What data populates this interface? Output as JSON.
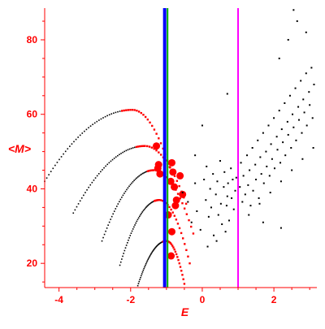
{
  "chart_data": {
    "type": "scatter",
    "xlabel": "E",
    "ylabel": "<M>",
    "xlim": [
      -4.4,
      3.2
    ],
    "ylim": [
      13.5,
      88.5
    ],
    "grid": false,
    "x_ticks": [
      -4,
      -2,
      0,
      2
    ],
    "y_ticks": [
      20,
      40,
      60,
      80
    ],
    "x_tick_labels": [
      "-4",
      "-2",
      "0",
      "2"
    ],
    "y_tick_labels": [
      "20",
      "40",
      "60",
      "80"
    ],
    "colors": {
      "axis": "#ff0000",
      "black_series": "#000000",
      "red_series": "#ff0000",
      "line_blue": "#0000ff",
      "line_green": "#00aa00",
      "line_magenta": "#ff00ff"
    },
    "vertical_lines": [
      {
        "x": -1.05,
        "color": "#0000ff",
        "width": 4
      },
      {
        "x": -0.97,
        "color": "#00aa00",
        "width": 2
      },
      {
        "x": 1.0,
        "color": "#ff00ff",
        "width": 2
      }
    ],
    "red_curves": [
      {
        "start": [
          -4.4,
          42.0
        ],
        "peak": [
          -1.95,
          61.2
        ],
        "end": [
          -0.85,
          44.0
        ]
      },
      {
        "start": [
          -3.6,
          33.5
        ],
        "peak": [
          -1.6,
          51.5
        ],
        "end": [
          -0.45,
          36.0
        ]
      },
      {
        "start": [
          -2.8,
          26.0
        ],
        "peak": [
          -1.35,
          45.0
        ],
        "end": [
          -0.25,
          28.0
        ]
      },
      {
        "start": [
          -2.3,
          19.5
        ],
        "peak": [
          -1.2,
          37.0
        ],
        "end": [
          -0.35,
          20.0
        ]
      },
      {
        "start": [
          -1.8,
          14.0
        ],
        "peak": [
          -1.0,
          26.0
        ],
        "end": [
          -0.5,
          14.5
        ]
      }
    ],
    "red_large_points": [
      {
        "x": -1.22,
        "y": 46.5
      },
      {
        "x": -1.24,
        "y": 45.5
      },
      {
        "x": -1.18,
        "y": 44.0
      },
      {
        "x": -0.85,
        "y": 47.0
      },
      {
        "x": -0.82,
        "y": 44.5
      },
      {
        "x": -0.88,
        "y": 42.0
      },
      {
        "x": -0.72,
        "y": 37.0
      },
      {
        "x": -0.75,
        "y": 35.5
      },
      {
        "x": -0.85,
        "y": 28.5
      },
      {
        "x": -0.87,
        "y": 22.0
      },
      {
        "x": -1.28,
        "y": 51.5
      },
      {
        "x": -0.78,
        "y": 40.5
      },
      {
        "x": -0.62,
        "y": 43.5
      },
      {
        "x": -0.55,
        "y": 38.5
      },
      {
        "x": -0.95,
        "y": 33.0
      }
    ],
    "black_points": [
      {
        "x": -0.55,
        "y": 39.0
      },
      {
        "x": -0.4,
        "y": 36.5
      },
      {
        "x": -0.3,
        "y": 31.0
      },
      {
        "x": -0.2,
        "y": 41.5
      },
      {
        "x": -0.15,
        "y": 34.0
      },
      {
        "x": -0.05,
        "y": 29.0
      },
      {
        "x": 0.05,
        "y": 42.5
      },
      {
        "x": 0.1,
        "y": 37.0
      },
      {
        "x": 0.12,
        "y": 46.0
      },
      {
        "x": 0.18,
        "y": 32.5
      },
      {
        "x": 0.22,
        "y": 40.0
      },
      {
        "x": 0.25,
        "y": 35.0
      },
      {
        "x": 0.3,
        "y": 44.0
      },
      {
        "x": 0.32,
        "y": 27.5
      },
      {
        "x": 0.38,
        "y": 38.5
      },
      {
        "x": 0.42,
        "y": 42.0
      },
      {
        "x": 0.45,
        "y": 33.0
      },
      {
        "x": 0.5,
        "y": 47.5
      },
      {
        "x": 0.52,
        "y": 36.0
      },
      {
        "x": 0.55,
        "y": 30.5
      },
      {
        "x": 0.6,
        "y": 40.5
      },
      {
        "x": 0.62,
        "y": 44.5
      },
      {
        "x": 0.68,
        "y": 35.5
      },
      {
        "x": 0.7,
        "y": 38.0
      },
      {
        "x": 0.72,
        "y": 41.5
      },
      {
        "x": 0.75,
        "y": 31.5
      },
      {
        "x": 0.8,
        "y": 45.5
      },
      {
        "x": 0.82,
        "y": 37.5
      },
      {
        "x": 0.85,
        "y": 42.5
      },
      {
        "x": 0.88,
        "y": 34.5
      },
      {
        "x": 0.92,
        "y": 39.5
      },
      {
        "x": 0.95,
        "y": 43.0
      },
      {
        "x": 1.05,
        "y": 40.5
      },
      {
        "x": 1.08,
        "y": 47.0
      },
      {
        "x": 1.12,
        "y": 36.5
      },
      {
        "x": 1.15,
        "y": 43.5
      },
      {
        "x": 1.2,
        "y": 38.5
      },
      {
        "x": 1.25,
        "y": 49.0
      },
      {
        "x": 1.28,
        "y": 41.0
      },
      {
        "x": 1.32,
        "y": 45.0
      },
      {
        "x": 1.35,
        "y": 35.5
      },
      {
        "x": 1.4,
        "y": 51.0
      },
      {
        "x": 1.42,
        "y": 39.5
      },
      {
        "x": 1.48,
        "y": 46.5
      },
      {
        "x": 1.5,
        "y": 42.5
      },
      {
        "x": 1.55,
        "y": 53.0
      },
      {
        "x": 1.58,
        "y": 37.5
      },
      {
        "x": 1.62,
        "y": 48.5
      },
      {
        "x": 1.65,
        "y": 44.0
      },
      {
        "x": 1.7,
        "y": 55.0
      },
      {
        "x": 1.72,
        "y": 41.5
      },
      {
        "x": 1.78,
        "y": 50.0
      },
      {
        "x": 1.8,
        "y": 46.0
      },
      {
        "x": 1.85,
        "y": 57.0
      },
      {
        "x": 1.88,
        "y": 43.5
      },
      {
        "x": 1.92,
        "y": 52.0
      },
      {
        "x": 1.95,
        "y": 48.0
      },
      {
        "x": 2.0,
        "y": 59.0
      },
      {
        "x": 2.02,
        "y": 45.5
      },
      {
        "x": 2.08,
        "y": 54.0
      },
      {
        "x": 2.1,
        "y": 50.5
      },
      {
        "x": 2.15,
        "y": 61.0
      },
      {
        "x": 2.18,
        "y": 47.0
      },
      {
        "x": 2.22,
        "y": 56.0
      },
      {
        "x": 2.25,
        "y": 52.5
      },
      {
        "x": 2.3,
        "y": 63.0
      },
      {
        "x": 2.32,
        "y": 49.0
      },
      {
        "x": 2.38,
        "y": 58.0
      },
      {
        "x": 2.4,
        "y": 54.5
      },
      {
        "x": 2.45,
        "y": 65.0
      },
      {
        "x": 2.48,
        "y": 51.0
      },
      {
        "x": 2.52,
        "y": 60.0
      },
      {
        "x": 2.55,
        "y": 56.5
      },
      {
        "x": 2.6,
        "y": 67.0
      },
      {
        "x": 2.62,
        "y": 53.0
      },
      {
        "x": 2.68,
        "y": 62.0
      },
      {
        "x": 2.7,
        "y": 58.5
      },
      {
        "x": 2.75,
        "y": 69.0
      },
      {
        "x": 2.78,
        "y": 55.0
      },
      {
        "x": 2.82,
        "y": 64.0
      },
      {
        "x": 2.85,
        "y": 60.5
      },
      {
        "x": 2.9,
        "y": 71.0
      },
      {
        "x": 2.92,
        "y": 57.0
      },
      {
        "x": 2.98,
        "y": 66.0
      },
      {
        "x": 3.0,
        "y": 62.5
      },
      {
        "x": 3.05,
        "y": 72.5
      },
      {
        "x": 3.08,
        "y": 59.0
      },
      {
        "x": 3.12,
        "y": 68.0
      },
      {
        "x": 1.3,
        "y": 33.0
      },
      {
        "x": 1.6,
        "y": 36.0
      },
      {
        "x": 1.9,
        "y": 39.0
      },
      {
        "x": 2.2,
        "y": 42.0
      },
      {
        "x": 2.5,
        "y": 45.0
      },
      {
        "x": 2.8,
        "y": 48.0
      },
      {
        "x": 3.1,
        "y": 51.0
      },
      {
        "x": 0.7,
        "y": 65.5
      },
      {
        "x": 2.15,
        "y": 75.0
      },
      {
        "x": 2.4,
        "y": 80.0
      },
      {
        "x": 2.65,
        "y": 85.0
      },
      {
        "x": 2.55,
        "y": 88.0
      },
      {
        "x": 2.9,
        "y": 82.0
      },
      {
        "x": 2.2,
        "y": 29.5
      },
      {
        "x": 1.7,
        "y": 31.0
      },
      {
        "x": 0.4,
        "y": 26.0
      },
      {
        "x": 0.15,
        "y": 24.5
      },
      {
        "x": 0.65,
        "y": 28.5
      },
      {
        "x": -0.2,
        "y": 49.0
      },
      {
        "x": 0.0,
        "y": 57.0
      }
    ]
  }
}
